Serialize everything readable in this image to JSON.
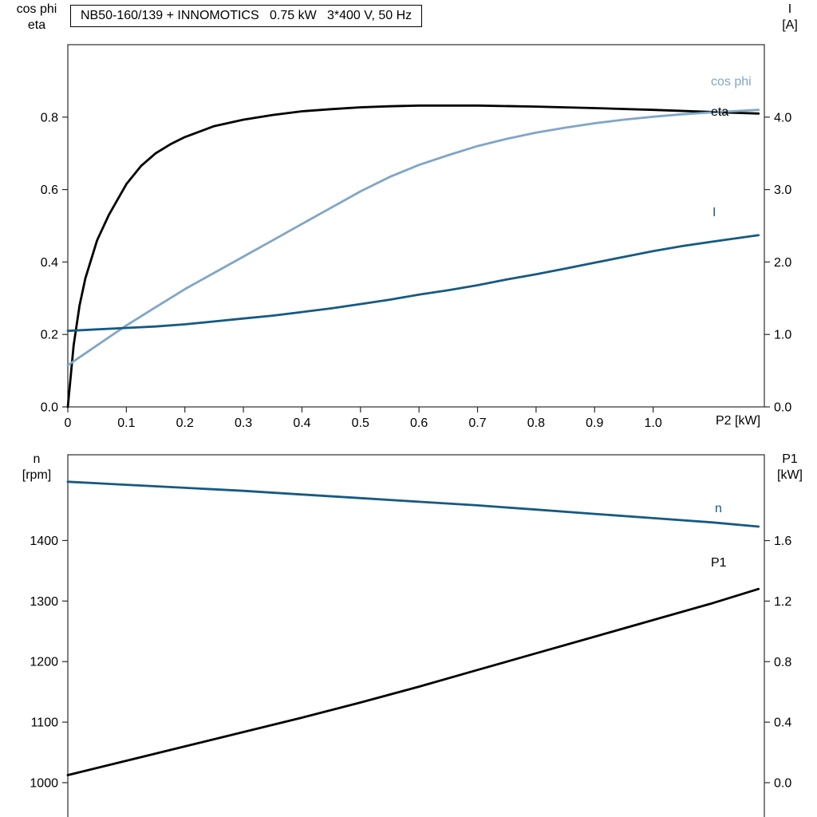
{
  "title": "NB50-160/139 + INNOMOTICS   0.75 kW   3*400 V, 50 Hz",
  "colors": {
    "frame": "#2b2b2b",
    "black_curve": "#000000",
    "light_blue_curve": "#7fa6c6",
    "dark_blue_curve": "#155a83"
  },
  "chart_data": [
    {
      "type": "line",
      "title": "NB50-160/139 + INNOMOTICS   0.75 kW   3*400 V, 50 Hz",
      "grid": false,
      "legend_position": "curve-end labels",
      "x_axis": {
        "label": "P2 [kW]",
        "range": [
          0,
          1.19
        ],
        "ticks": [
          0,
          0.1,
          0.2,
          0.3,
          0.4,
          0.5,
          0.6,
          0.7,
          0.8,
          0.9,
          1.0
        ],
        "tick_labels": [
          "0",
          "0.1",
          "0.2",
          "0.3",
          "0.4",
          "0.5",
          "0.6",
          "0.7",
          "0.8",
          "0.9",
          "1.0"
        ]
      },
      "y_left": {
        "label_line1": "cos phi",
        "label_line2": "eta",
        "range": [
          0,
          1.0
        ],
        "ticks": [
          0,
          0.2,
          0.4,
          0.6,
          0.8
        ],
        "tick_labels": [
          "0.0",
          "0.2",
          "0.4",
          "0.6",
          "0.8"
        ]
      },
      "y_right": {
        "label_line1": "I",
        "label_line2": "[A]",
        "range": [
          0,
          5.0
        ],
        "ticks": [
          0,
          1,
          2,
          3,
          4
        ],
        "tick_labels": [
          "0.0",
          "1.0",
          "2.0",
          "3.0",
          "4.0"
        ]
      },
      "series": [
        {
          "name": "eta",
          "label": "eta",
          "axis": "left",
          "color": "#000000",
          "points": [
            [
              0,
              0
            ],
            [
              0.01,
              0.17
            ],
            [
              0.02,
              0.28
            ],
            [
              0.03,
              0.355
            ],
            [
              0.05,
              0.46
            ],
            [
              0.07,
              0.53
            ],
            [
              0.1,
              0.615
            ],
            [
              0.125,
              0.665
            ],
            [
              0.15,
              0.7
            ],
            [
              0.175,
              0.725
            ],
            [
              0.2,
              0.745
            ],
            [
              0.25,
              0.775
            ],
            [
              0.3,
              0.793
            ],
            [
              0.35,
              0.806
            ],
            [
              0.4,
              0.816
            ],
            [
              0.45,
              0.822
            ],
            [
              0.5,
              0.827
            ],
            [
              0.55,
              0.83
            ],
            [
              0.6,
              0.832
            ],
            [
              0.7,
              0.832
            ],
            [
              0.8,
              0.829
            ],
            [
              0.9,
              0.825
            ],
            [
              1.0,
              0.82
            ],
            [
              1.1,
              0.814
            ],
            [
              1.18,
              0.81
            ]
          ]
        },
        {
          "name": "cos-phi",
          "label": "cos phi",
          "axis": "left",
          "color": "#7fa6c6",
          "points": [
            [
              0,
              0.115
            ],
            [
              0.05,
              0.17
            ],
            [
              0.1,
              0.225
            ],
            [
              0.15,
              0.275
            ],
            [
              0.2,
              0.325
            ],
            [
              0.25,
              0.37
            ],
            [
              0.3,
              0.415
            ],
            [
              0.35,
              0.46
            ],
            [
              0.4,
              0.505
            ],
            [
              0.45,
              0.55
            ],
            [
              0.5,
              0.595
            ],
            [
              0.55,
              0.635
            ],
            [
              0.6,
              0.668
            ],
            [
              0.65,
              0.695
            ],
            [
              0.7,
              0.72
            ],
            [
              0.75,
              0.74
            ],
            [
              0.8,
              0.757
            ],
            [
              0.85,
              0.771
            ],
            [
              0.9,
              0.783
            ],
            [
              0.95,
              0.793
            ],
            [
              1.0,
              0.801
            ],
            [
              1.05,
              0.808
            ],
            [
              1.1,
              0.813
            ],
            [
              1.18,
              0.82
            ]
          ]
        },
        {
          "name": "current",
          "label": "I",
          "axis": "right",
          "color": "#155a83",
          "points": [
            [
              0,
              1.05
            ],
            [
              0.05,
              1.07
            ],
            [
              0.1,
              1.09
            ],
            [
              0.15,
              1.11
            ],
            [
              0.2,
              1.14
            ],
            [
              0.25,
              1.18
            ],
            [
              0.3,
              1.22
            ],
            [
              0.35,
              1.26
            ],
            [
              0.4,
              1.31
            ],
            [
              0.45,
              1.36
            ],
            [
              0.5,
              1.42
            ],
            [
              0.55,
              1.48
            ],
            [
              0.6,
              1.55
            ],
            [
              0.65,
              1.61
            ],
            [
              0.7,
              1.68
            ],
            [
              0.75,
              1.76
            ],
            [
              0.8,
              1.83
            ],
            [
              0.85,
              1.91
            ],
            [
              0.9,
              1.99
            ],
            [
              0.95,
              2.07
            ],
            [
              1.0,
              2.15
            ],
            [
              1.05,
              2.22
            ],
            [
              1.1,
              2.28
            ],
            [
              1.18,
              2.37
            ]
          ]
        }
      ]
    },
    {
      "type": "line",
      "title": "",
      "grid": false,
      "legend_position": "curve-end labels",
      "x_axis": {
        "label": "",
        "range": [
          0,
          1.19
        ],
        "ticks": [],
        "tick_labels": []
      },
      "y_left": {
        "label_line1": "n",
        "label_line2": "[rpm]",
        "range": [
          1000,
          1500
        ],
        "ticks": [
          1000,
          1100,
          1200,
          1300,
          1400
        ],
        "tick_labels": [
          "1000",
          "1100",
          "1200",
          "1300",
          "1400"
        ]
      },
      "y_right": {
        "label_line1": "P1",
        "label_line2": "[kW]",
        "range": [
          0,
          1.6
        ],
        "ticks": [
          0,
          0.4,
          0.8,
          1.2,
          1.6
        ],
        "tick_labels": [
          "0.0",
          "0.4",
          "0.8",
          "1.2",
          "1.6"
        ]
      },
      "series": [
        {
          "name": "n",
          "label": "n",
          "axis": "left",
          "color": "#155a83",
          "points": [
            [
              0,
              1497
            ],
            [
              0.1,
              1492
            ],
            [
              0.2,
              1487
            ],
            [
              0.3,
              1482
            ],
            [
              0.4,
              1476
            ],
            [
              0.5,
              1470
            ],
            [
              0.6,
              1464
            ],
            [
              0.7,
              1458
            ],
            [
              0.8,
              1451
            ],
            [
              0.9,
              1444
            ],
            [
              1.0,
              1437
            ],
            [
              1.1,
              1430
            ],
            [
              1.18,
              1423
            ]
          ]
        },
        {
          "name": "p1",
          "label": "P1",
          "axis": "right",
          "color": "#000000",
          "points": [
            [
              0,
              0.05
            ],
            [
              0.1,
              0.145
            ],
            [
              0.2,
              0.24
            ],
            [
              0.3,
              0.335
            ],
            [
              0.4,
              0.43
            ],
            [
              0.5,
              0.53
            ],
            [
              0.6,
              0.635
            ],
            [
              0.7,
              0.745
            ],
            [
              0.8,
              0.855
            ],
            [
              0.9,
              0.965
            ],
            [
              1.0,
              1.075
            ],
            [
              1.1,
              1.185
            ],
            [
              1.18,
              1.28
            ]
          ]
        }
      ]
    }
  ]
}
